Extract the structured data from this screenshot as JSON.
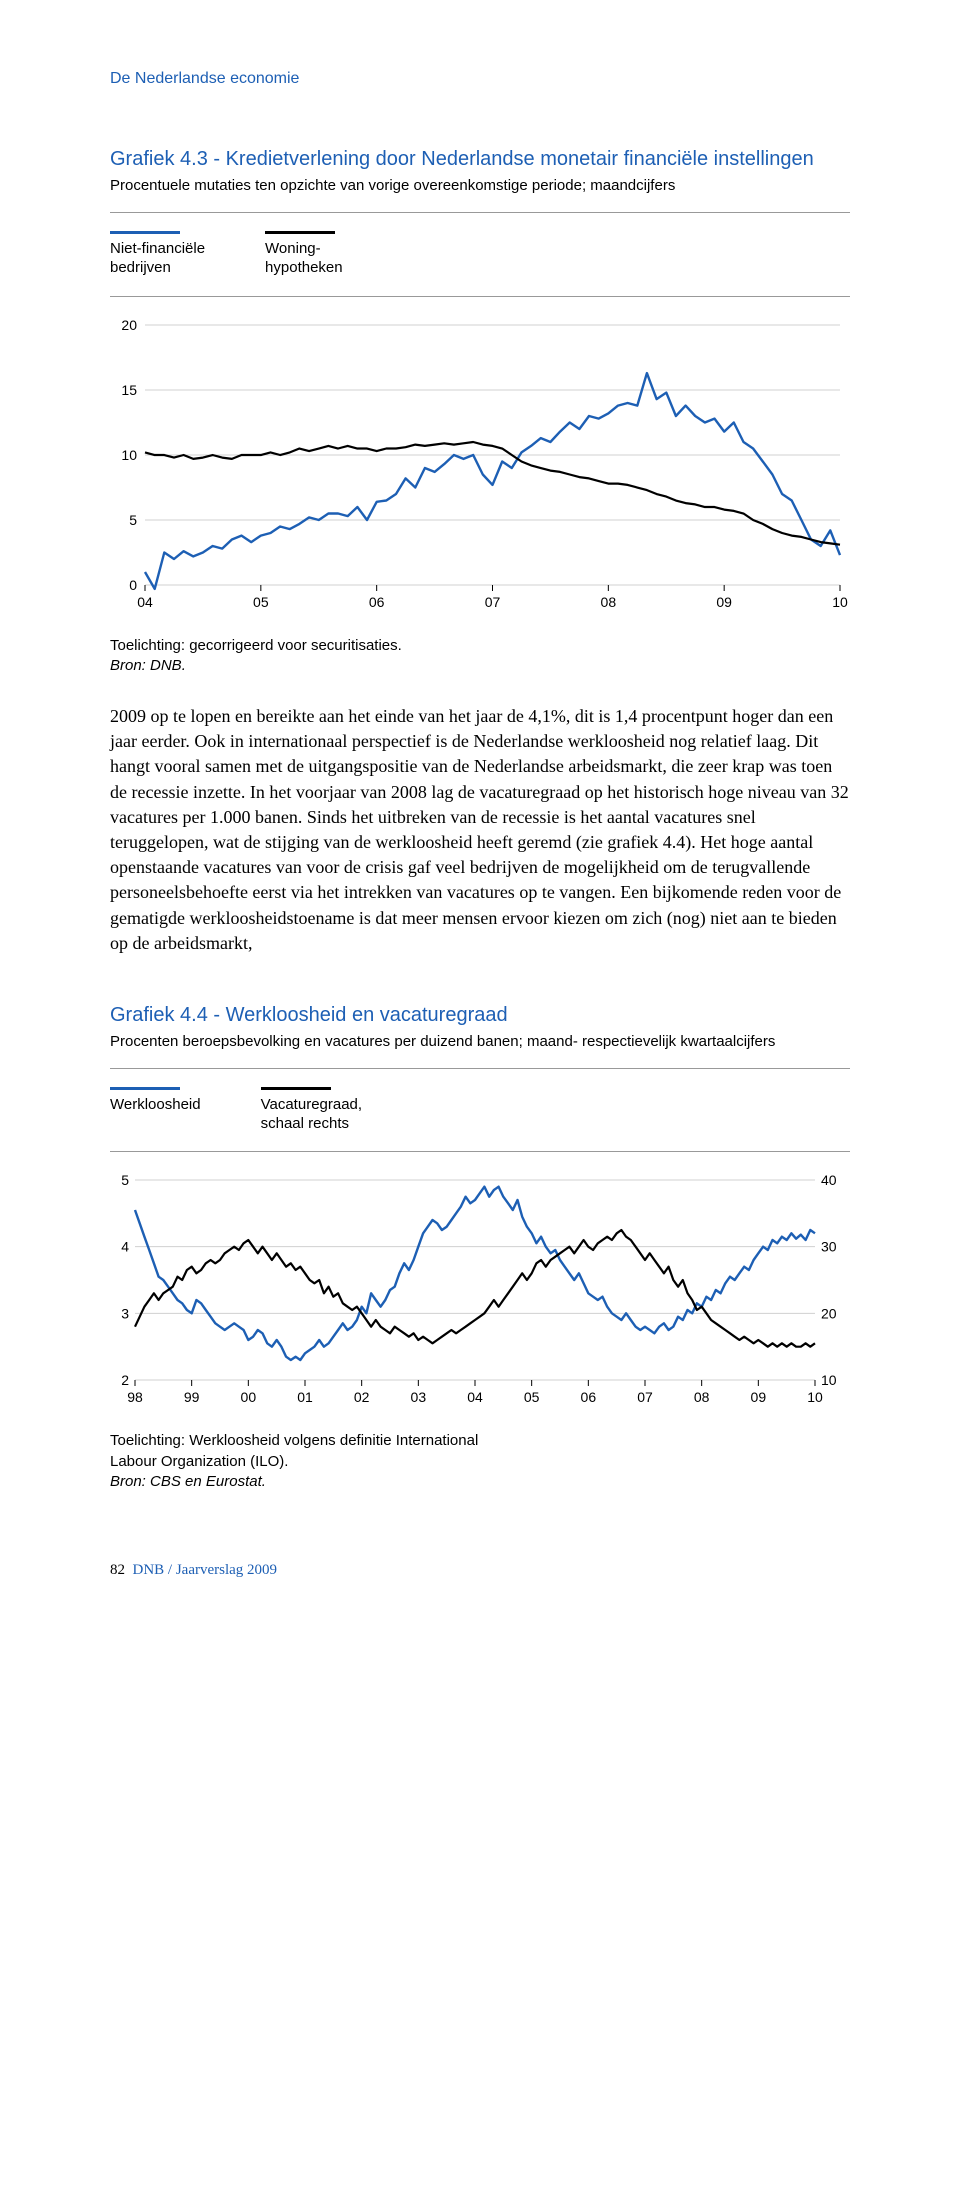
{
  "runningHead": "De Nederlandse economie",
  "chart1": {
    "title": "Grafiek 4.3 - Kredietverlening door Nederlandse monetair financiële instellingen",
    "subtitle": "Procentuele mutaties ten opzichte van vorige overeenkomstige periode; maandcijfers",
    "type": "line",
    "legendItems": [
      {
        "label": "Niet-financiële\nbedrijven",
        "color": "#1d5fb4"
      },
      {
        "label": "Woning-\nhypotheken",
        "color": "#000000"
      }
    ],
    "ylim": [
      0,
      20
    ],
    "yticks": [
      0,
      5,
      10,
      15,
      20
    ],
    "xLabels": [
      "04",
      "05",
      "06",
      "07",
      "08",
      "09",
      "10"
    ],
    "nPoints": 73,
    "series": [
      {
        "name": "Niet-financiële bedrijven",
        "color": "#1d5fb4",
        "lineWidth": 2.4,
        "values": [
          1.0,
          -0.3,
          2.5,
          2.0,
          2.6,
          2.2,
          2.5,
          3.0,
          2.8,
          3.5,
          3.8,
          3.3,
          3.8,
          4.0,
          4.5,
          4.3,
          4.7,
          5.2,
          5.0,
          5.5,
          5.5,
          5.3,
          6.0,
          5.0,
          6.4,
          6.5,
          7.0,
          8.2,
          7.5,
          9.0,
          8.7,
          9.3,
          10.0,
          9.7,
          10.0,
          8.5,
          7.7,
          9.5,
          9.0,
          10.2,
          10.7,
          11.3,
          11.0,
          11.8,
          12.5,
          12.0,
          13.0,
          12.8,
          13.2,
          13.8,
          14.0,
          13.8,
          16.3,
          14.3,
          14.8,
          13.0,
          13.8,
          13.0,
          12.5,
          12.8,
          11.8,
          12.5,
          11.0,
          10.5,
          9.5,
          8.5,
          7.0,
          6.5,
          5.0,
          3.5,
          3.0,
          4.2,
          2.3
        ]
      },
      {
        "name": "Woninghypotheken",
        "color": "#000000",
        "lineWidth": 2.2,
        "values": [
          10.2,
          10.0,
          10.0,
          9.8,
          10.0,
          9.7,
          9.8,
          10.0,
          9.8,
          9.7,
          10.0,
          10.0,
          10.0,
          10.2,
          10.0,
          10.2,
          10.5,
          10.3,
          10.5,
          10.7,
          10.5,
          10.7,
          10.5,
          10.5,
          10.3,
          10.5,
          10.5,
          10.6,
          10.8,
          10.7,
          10.8,
          10.9,
          10.8,
          10.9,
          11.0,
          10.8,
          10.7,
          10.5,
          10.0,
          9.5,
          9.2,
          9.0,
          8.8,
          8.7,
          8.5,
          8.3,
          8.2,
          8.0,
          7.8,
          7.8,
          7.7,
          7.5,
          7.3,
          7.0,
          6.8,
          6.5,
          6.3,
          6.2,
          6.0,
          6.0,
          5.8,
          5.7,
          5.5,
          5.0,
          4.7,
          4.3,
          4.0,
          3.8,
          3.7,
          3.5,
          3.3,
          3.2,
          3.1
        ]
      }
    ],
    "note": "Toelichting: gecorrigeerd voor securitisaties.",
    "source": "Bron: DNB.",
    "gridColor": "#d0d0d0",
    "axisColor": "#000000",
    "labelFontSize": 14,
    "background": "#ffffff"
  },
  "bodyText": "2009 op te lopen en bereikte aan het einde van het jaar de 4,1%, dit is 1,4 procentpunt hoger dan een jaar eerder. Ook in internationaal perspectief is de Nederlandse werkloosheid nog relatief laag. Dit hangt vooral samen met de uitgangspositie van de Nederlandse arbeidsmarkt, die zeer krap was toen de recessie inzette. In het voorjaar van 2008 lag de vacaturegraad op het historisch hoge niveau van 32 vacatures per 1.000 banen. Sinds het uitbreken van de recessie is het aantal vacatures snel teruggelopen, wat de stijging van de werkloosheid heeft geremd (zie grafiek 4.4). Het hoge aantal openstaande vacatures van voor de crisis gaf veel bedrijven de mogelijkheid om de terugvallende personeelsbehoefte eerst via het intrekken van vacatures op te vangen. Een bijkomende reden voor de gematigde werkloosheidstoename is dat meer mensen ervoor kiezen om zich (nog) niet aan te bieden op de arbeidsmarkt,",
  "chart2": {
    "title": "Grafiek 4.4 - Werkloosheid en vacaturegraad",
    "subtitle": "Procenten beroepsbevolking en vacatures per duizend banen; maand- respectievelijk kwartaalcijfers",
    "type": "line",
    "legendItems": [
      {
        "label": "Werkloosheid",
        "color": "#1d5fb4"
      },
      {
        "label": "Vacaturegraad,\nschaal rechts",
        "color": "#000000"
      }
    ],
    "yLeft": {
      "lim": [
        2,
        5
      ],
      "ticks": [
        2,
        3,
        4,
        5
      ]
    },
    "yRight": {
      "lim": [
        10,
        40
      ],
      "ticks": [
        10,
        20,
        30,
        40
      ]
    },
    "xLabels": [
      "98",
      "99",
      "00",
      "01",
      "02",
      "03",
      "04",
      "05",
      "06",
      "07",
      "08",
      "09",
      "10"
    ],
    "nPoints": 145,
    "series": [
      {
        "name": "Werkloosheid",
        "axis": "left",
        "color": "#1d5fb4",
        "lineWidth": 2.4,
        "values": [
          4.55,
          4.35,
          4.15,
          3.95,
          3.75,
          3.55,
          3.5,
          3.4,
          3.3,
          3.2,
          3.15,
          3.05,
          3.0,
          3.2,
          3.15,
          3.05,
          2.95,
          2.85,
          2.8,
          2.75,
          2.8,
          2.85,
          2.8,
          2.75,
          2.6,
          2.65,
          2.75,
          2.7,
          2.55,
          2.5,
          2.6,
          2.5,
          2.35,
          2.3,
          2.35,
          2.3,
          2.4,
          2.45,
          2.5,
          2.6,
          2.5,
          2.55,
          2.65,
          2.75,
          2.85,
          2.75,
          2.8,
          2.9,
          3.1,
          3.0,
          3.3,
          3.2,
          3.1,
          3.2,
          3.35,
          3.4,
          3.6,
          3.75,
          3.65,
          3.8,
          4.0,
          4.2,
          4.3,
          4.4,
          4.35,
          4.25,
          4.3,
          4.4,
          4.5,
          4.6,
          4.75,
          4.65,
          4.7,
          4.8,
          4.9,
          4.75,
          4.85,
          4.9,
          4.75,
          4.65,
          4.55,
          4.7,
          4.45,
          4.3,
          4.2,
          4.05,
          4.15,
          4.0,
          3.9,
          3.95,
          3.8,
          3.7,
          3.6,
          3.5,
          3.6,
          3.45,
          3.3,
          3.25,
          3.2,
          3.25,
          3.1,
          3.0,
          2.95,
          2.9,
          3.0,
          2.9,
          2.8,
          2.75,
          2.8,
          2.75,
          2.7,
          2.8,
          2.85,
          2.75,
          2.8,
          2.95,
          2.9,
          3.05,
          3.0,
          3.15,
          3.1,
          3.25,
          3.2,
          3.35,
          3.3,
          3.45,
          3.55,
          3.5,
          3.6,
          3.7,
          3.65,
          3.8,
          3.9,
          4.0,
          3.95,
          4.1,
          4.05,
          4.15,
          4.1,
          4.2,
          4.12,
          4.18,
          4.1,
          4.25,
          4.2
        ]
      },
      {
        "name": "Vacaturegraad",
        "axis": "right",
        "color": "#000000",
        "lineWidth": 2.2,
        "values": [
          18.0,
          19.5,
          21.0,
          22.0,
          23.0,
          22.0,
          23.0,
          23.5,
          24.0,
          25.5,
          25.0,
          26.5,
          27.0,
          26.0,
          26.5,
          27.5,
          28.0,
          27.5,
          28.0,
          29.0,
          29.5,
          30.0,
          29.5,
          30.5,
          31.0,
          30.0,
          29.0,
          30.0,
          29.0,
          28.0,
          29.0,
          28.0,
          27.0,
          27.5,
          26.5,
          27.0,
          26.0,
          25.0,
          24.5,
          25.0,
          23.0,
          24.0,
          22.5,
          23.0,
          21.5,
          21.0,
          20.5,
          21.0,
          20.0,
          19.0,
          18.0,
          19.0,
          18.0,
          17.5,
          17.0,
          18.0,
          17.5,
          17.0,
          16.5,
          17.0,
          16.0,
          16.5,
          16.0,
          15.5,
          16.0,
          16.5,
          17.0,
          17.5,
          17.0,
          17.5,
          18.0,
          18.5,
          19.0,
          19.5,
          20.0,
          21.0,
          22.0,
          21.0,
          22.0,
          23.0,
          24.0,
          25.0,
          26.0,
          25.0,
          26.0,
          27.5,
          28.0,
          27.0,
          28.0,
          28.5,
          29.0,
          29.5,
          30.0,
          29.0,
          30.0,
          31.0,
          30.0,
          29.5,
          30.5,
          31.0,
          31.5,
          31.0,
          32.0,
          32.5,
          31.5,
          31.0,
          30.0,
          29.0,
          28.0,
          29.0,
          28.0,
          27.0,
          26.0,
          27.0,
          25.0,
          24.0,
          25.0,
          23.0,
          22.0,
          20.5,
          21.0,
          20.0,
          19.0,
          18.5,
          18.0,
          17.5,
          17.0,
          16.5,
          16.0,
          16.5,
          16.0,
          15.5,
          16.0,
          15.5,
          15.0,
          15.5,
          15.0,
          15.5,
          15.0,
          15.5,
          15.0,
          15.0,
          15.5,
          15.0,
          15.5
        ]
      }
    ],
    "note": "Toelichting: Werkloosheid volgens definitie International\nLabour Organization (ILO).",
    "source": "Bron: CBS en Eurostat.",
    "gridColor": "#d0d0d0",
    "axisColor": "#000000",
    "labelFontSize": 14,
    "background": "#ffffff"
  },
  "footer": {
    "pageNum": "82",
    "ref": "DNB / Jaarverslag 2009"
  }
}
